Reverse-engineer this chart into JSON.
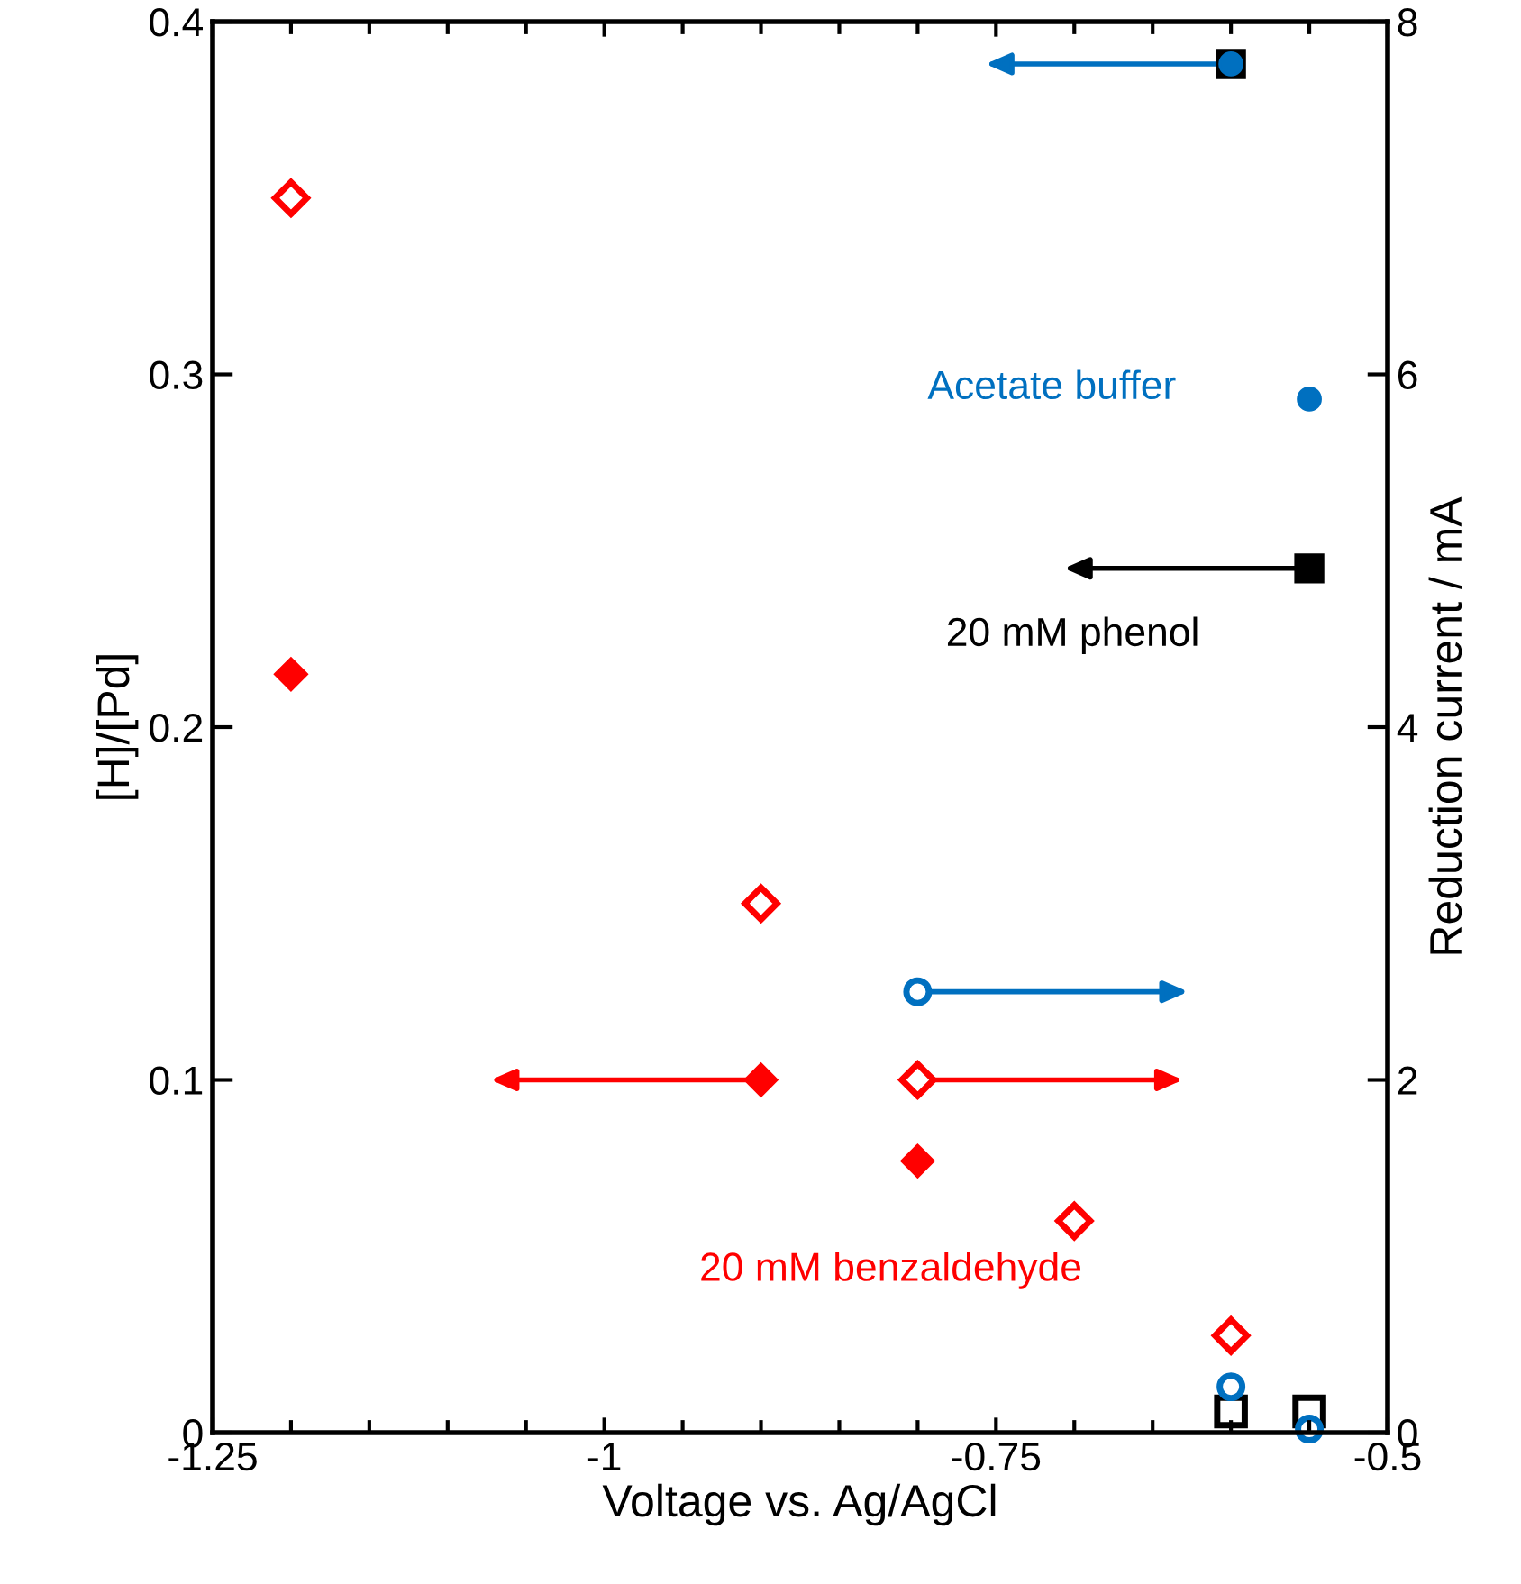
{
  "chart_data": {
    "type": "scatter",
    "xlabel": "Voltage vs. Ag/AgCl",
    "ylabel": "[H]/[Pd]",
    "y2label": "Reduction current / mA",
    "xlim": [
      -1.25,
      -0.5
    ],
    "xticks": [
      -1.25,
      -1,
      -0.75,
      -0.5
    ],
    "ylim": [
      0,
      0.4
    ],
    "yticks": [
      0,
      0.1,
      0.2,
      0.3,
      0.4
    ],
    "y2lim": [
      0,
      8
    ],
    "y2ticks": [
      0,
      2,
      4,
      6,
      8
    ],
    "grid": false,
    "legend": false,
    "series": [
      {
        "color": "#000000",
        "marker": "square",
        "x": [
          -0.6,
          -0.55
        ],
        "values": [
          0.388,
          0.245
        ]
      },
      {
        "color": "#000000",
        "marker": "square",
        "axis": "y2",
        "x": [
          -0.6,
          -0.55
        ],
        "values": [
          0.12,
          0.12
        ]
      },
      {
        "color": "#0070c0",
        "marker": "circle",
        "x": [
          -0.6,
          -0.55
        ],
        "values": [
          0.388,
          0.293
        ]
      },
      {
        "color": "#0070c0",
        "marker": "circle",
        "axis": "y2",
        "x": [
          -0.8,
          -0.6,
          -0.55
        ],
        "values": [
          2.5,
          0.26,
          0.02
        ]
      },
      {
        "color": "#ff0000",
        "marker": "diamond",
        "x": [
          -1.2,
          -0.9,
          -0.8
        ],
        "values": [
          0.215,
          0.1,
          0.077
        ]
      },
      {
        "color": "#ff0000",
        "marker": "diamond",
        "axis": "y2",
        "x": [
          -1.2,
          -0.9,
          -0.8,
          -0.7,
          -0.6
        ],
        "values": [
          7.0,
          3.0,
          2.0,
          1.2,
          0.55
        ]
      }
    ],
    "annotations": [
      "Acetate buffer",
      "20 mM phenol",
      "20 mM benzaldehyde"
    ]
  }
}
